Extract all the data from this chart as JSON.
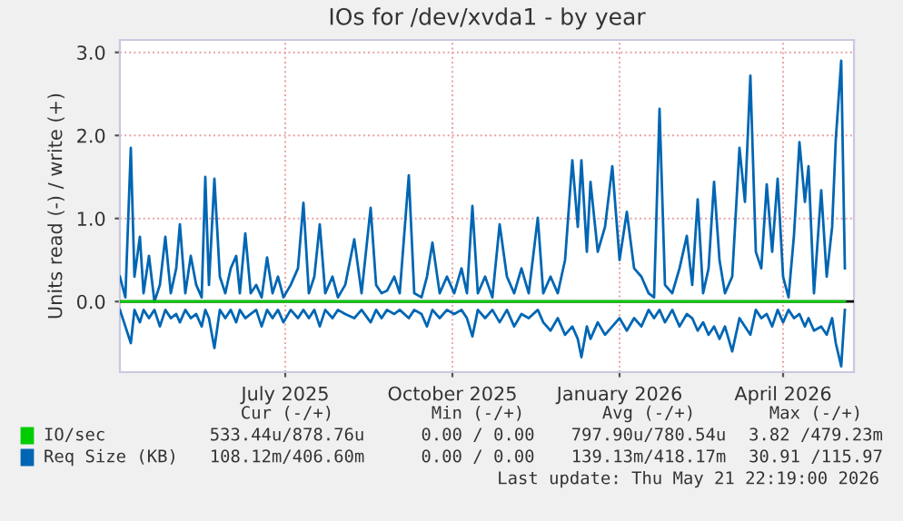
{
  "chart_data": {
    "type": "line",
    "title": "IOs for /dev/xvda1 - by year",
    "ylabel": "Units read (-) / write (+)",
    "x": [
      "2025-04-01",
      "2025-04-04",
      "2025-04-07",
      "2025-04-09",
      "2025-04-12",
      "2025-04-14",
      "2025-04-17",
      "2025-04-20",
      "2025-04-23",
      "2025-04-26",
      "2025-04-29",
      "2025-05-02",
      "2025-05-04",
      "2025-05-07",
      "2025-05-10",
      "2025-05-13",
      "2025-05-16",
      "2025-05-18",
      "2025-05-20",
      "2025-05-23",
      "2025-05-26",
      "2025-05-29",
      "2025-06-01",
      "2025-06-04",
      "2025-06-06",
      "2025-06-09",
      "2025-06-12",
      "2025-06-15",
      "2025-06-18",
      "2025-06-21",
      "2025-06-24",
      "2025-06-27",
      "2025-06-30",
      "2025-07-04",
      "2025-07-08",
      "2025-07-11",
      "2025-07-14",
      "2025-07-17",
      "2025-07-20",
      "2025-07-23",
      "2025-07-27",
      "2025-07-30",
      "2025-08-03",
      "2025-08-08",
      "2025-08-12",
      "2025-08-17",
      "2025-08-20",
      "2025-08-23",
      "2025-08-26",
      "2025-08-30",
      "2025-09-02",
      "2025-09-07",
      "2025-09-10",
      "2025-09-14",
      "2025-09-17",
      "2025-09-20",
      "2025-09-24",
      "2025-09-28",
      "2025-10-02",
      "2025-10-06",
      "2025-10-09",
      "2025-10-12",
      "2025-10-15",
      "2025-10-19",
      "2025-10-23",
      "2025-10-27",
      "2025-10-31",
      "2025-11-04",
      "2025-11-08",
      "2025-11-12",
      "2025-11-17",
      "2025-11-20",
      "2025-11-24",
      "2025-11-28",
      "2025-12-02",
      "2025-12-06",
      "2025-12-09",
      "2025-12-11",
      "2025-12-14",
      "2025-12-16",
      "2025-12-20",
      "2025-12-24",
      "2025-12-28",
      "2026-01-01",
      "2026-01-05",
      "2026-01-09",
      "2026-01-13",
      "2026-01-17",
      "2026-01-20",
      "2026-01-23",
      "2026-01-26",
      "2026-01-30",
      "2026-02-03",
      "2026-02-07",
      "2026-02-10",
      "2026-02-13",
      "2026-02-16",
      "2026-02-19",
      "2026-02-22",
      "2026-02-25",
      "2026-02-28",
      "2026-03-04",
      "2026-03-08",
      "2026-03-11",
      "2026-03-14",
      "2026-03-17",
      "2026-03-20",
      "2026-03-23",
      "2026-03-26",
      "2026-03-29",
      "2026-04-01",
      "2026-04-04",
      "2026-04-07",
      "2026-04-10",
      "2026-04-13",
      "2026-04-15",
      "2026-04-18",
      "2026-04-22",
      "2026-04-25",
      "2026-04-28",
      "2026-04-30",
      "2026-05-03",
      "2026-05-05"
    ],
    "series": [
      {
        "name": "IO/sec",
        "color": "#00cc00",
        "values": [
          0,
          0,
          0,
          0,
          0,
          0,
          0,
          0,
          0,
          0,
          0,
          0,
          0,
          0,
          0,
          0,
          0,
          0,
          0,
          0,
          0,
          0,
          0,
          0,
          0,
          0,
          0,
          0,
          0,
          0,
          0,
          0,
          0,
          0,
          0,
          0,
          0,
          0,
          0,
          0,
          0,
          0,
          0,
          0,
          0,
          0,
          0,
          0,
          0,
          0,
          0,
          0,
          0,
          0,
          0,
          0,
          0,
          0,
          0,
          0,
          0,
          0,
          0,
          0,
          0,
          0,
          0,
          0,
          0,
          0,
          0,
          0,
          0,
          0,
          0,
          0,
          0,
          0,
          0,
          0,
          0,
          0,
          0,
          0,
          0,
          0,
          0,
          0,
          0,
          0,
          0,
          0,
          0,
          0,
          0,
          0,
          0,
          0,
          0,
          0,
          0,
          0,
          0,
          0,
          0,
          0,
          0,
          0,
          0,
          0,
          0,
          0,
          0,
          0,
          0,
          0,
          0,
          0,
          0,
          0,
          0,
          0,
          0
        ]
      },
      {
        "color": "#0066b3",
        "values": [
          -0.1,
          -0.3,
          -0.5,
          -0.1,
          -0.25,
          -0.1,
          -0.2,
          -0.1,
          -0.3,
          -0.1,
          -0.2,
          -0.15,
          -0.25,
          -0.1,
          -0.2,
          -0.15,
          -0.3,
          -0.1,
          -0.2,
          -0.56,
          -0.1,
          -0.2,
          -0.1,
          -0.25,
          -0.1,
          -0.2,
          -0.15,
          -0.1,
          -0.3,
          -0.1,
          -0.2,
          -0.1,
          -0.25,
          -0.1,
          -0.2,
          -0.1,
          -0.2,
          -0.1,
          -0.3,
          -0.1,
          -0.2,
          -0.1,
          -0.15,
          -0.2,
          -0.1,
          -0.25,
          -0.1,
          -0.2,
          -0.1,
          -0.15,
          -0.1,
          -0.2,
          -0.1,
          -0.15,
          -0.3,
          -0.1,
          -0.2,
          -0.1,
          -0.15,
          -0.1,
          -0.2,
          -0.42,
          -0.1,
          -0.2,
          -0.1,
          -0.25,
          -0.1,
          -0.3,
          -0.15,
          -0.2,
          -0.1,
          -0.25,
          -0.35,
          -0.2,
          -0.4,
          -0.3,
          -0.45,
          -0.67,
          -0.3,
          -0.45,
          -0.25,
          -0.4,
          -0.3,
          -0.2,
          -0.35,
          -0.2,
          -0.3,
          -0.1,
          -0.2,
          -0.1,
          -0.25,
          -0.1,
          -0.3,
          -0.15,
          -0.2,
          -0.35,
          -0.25,
          -0.4,
          -0.3,
          -0.45,
          -0.3,
          -0.6,
          -0.2,
          -0.3,
          -0.4,
          -0.1,
          -0.2,
          -0.15,
          -0.3,
          -0.1,
          -0.25,
          -0.1,
          -0.2,
          -0.15,
          -0.3,
          -0.2,
          -0.35,
          -0.3,
          -0.4,
          -0.2,
          -0.5,
          -0.78,
          -0.1
        ]
      },
      {
        "name": "Req Size (KB)",
        "color": "#0066b3",
        "values": [
          0.3,
          0.05,
          1.85,
          0.3,
          0.78,
          0.1,
          0.55,
          0.0,
          0.2,
          0.78,
          0.1,
          0.4,
          0.93,
          0.1,
          0.55,
          0.2,
          0.05,
          1.5,
          0.2,
          1.48,
          0.3,
          0.1,
          0.4,
          0.55,
          0.1,
          0.82,
          0.1,
          0.2,
          0.05,
          0.53,
          0.1,
          0.3,
          0.05,
          0.2,
          0.4,
          1.19,
          0.1,
          0.3,
          0.93,
          0.1,
          0.3,
          0.05,
          0.2,
          0.75,
          0.1,
          1.13,
          0.2,
          0.1,
          0.13,
          0.3,
          0.1,
          1.52,
          0.1,
          0.05,
          0.3,
          0.71,
          0.1,
          0.3,
          0.1,
          0.4,
          0.1,
          1.15,
          0.1,
          0.3,
          0.05,
          0.93,
          0.3,
          0.1,
          0.4,
          0.1,
          1.01,
          0.1,
          0.3,
          0.1,
          0.5,
          1.7,
          0.9,
          1.7,
          0.6,
          1.44,
          0.6,
          0.9,
          1.63,
          0.5,
          1.08,
          0.4,
          0.3,
          0.1,
          0.05,
          2.32,
          0.2,
          0.1,
          0.4,
          0.79,
          0.2,
          1.23,
          0.1,
          0.4,
          1.44,
          0.5,
          0.1,
          0.3,
          1.85,
          1.2,
          2.72,
          0.6,
          0.4,
          1.41,
          0.6,
          1.48,
          0.3,
          0.05,
          0.8,
          1.92,
          1.2,
          1.63,
          0.1,
          1.34,
          0.3,
          0.9,
          1.95,
          2.9,
          0.4
        ]
      }
    ],
    "xlim": [
      "2025-04-01",
      "2026-05-10"
    ],
    "xticks": [
      {
        "value": "2025-07-01",
        "label": "July 2025"
      },
      {
        "value": "2025-10-01",
        "label": "October 2025"
      },
      {
        "value": "2026-01-01",
        "label": "January 2026"
      },
      {
        "value": "2026-04-01",
        "label": "April 2026"
      }
    ],
    "ylim": [
      -0.85,
      3.15
    ],
    "yticks": [
      {
        "value": 0,
        "label": "0.0"
      },
      {
        "value": 1,
        "label": "1.0"
      },
      {
        "value": 2,
        "label": "2.0"
      },
      {
        "value": 3,
        "label": "3.0"
      }
    ],
    "grid": true,
    "legend": "bottom",
    "ref_lines": [
      {
        "axis": "y",
        "value": 0,
        "color": "#000000"
      }
    ],
    "annotations": [
      "Cur (-/+)",
      "Min (-/+)",
      "Avg (-/+)",
      "Max (-/+)",
      "533.44u/878.76u",
      "0.00 / 0.00",
      "797.90u/780.54u",
      "3.82 /479.23m",
      "108.12m/406.60m",
      "0.00 / 0.00",
      "139.13m/418.17m",
      "30.91 /115.97",
      "Last update: Thu May 21 22:19:00 2026"
    ]
  }
}
